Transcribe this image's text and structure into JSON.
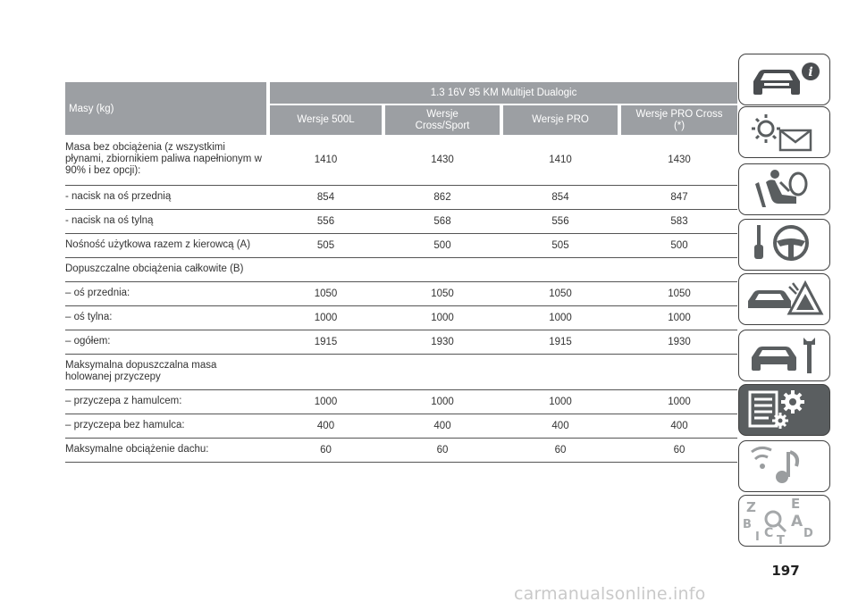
{
  "table": {
    "header_label": "Masy (kg)",
    "engine": "1.3 16V 95 KM Multijet Dualogic",
    "versions": [
      "Wersje 500L",
      "Wersje\nCross/Sport",
      "Wersje PRO",
      "Wersje PRO Cross\n(*)"
    ],
    "rows": [
      {
        "label": "Masa bez obciążenia (z wszystkimi\npłynami, zbiornikiem paliwa napełnionym w\n90% i bez opcji):",
        "values": [
          "1410",
          "1430",
          "1410",
          "1430"
        ]
      },
      {
        "label": "- nacisk na oś przednią",
        "values": [
          "854",
          "862",
          "854",
          "847"
        ]
      },
      {
        "label": "- nacisk na oś tylną",
        "values": [
          "556",
          "568",
          "556",
          "583"
        ]
      },
      {
        "label": "Nośność użytkowa razem z kierowcą (A)",
        "values": [
          "505",
          "500",
          "505",
          "500"
        ]
      },
      {
        "label": "Dopuszczalne obciążenia całkowite (B)",
        "values": [
          "",
          "",
          "",
          ""
        ]
      },
      {
        "label": "– oś przednia:",
        "values": [
          "1050",
          "1050",
          "1050",
          "1050"
        ]
      },
      {
        "label": "– oś tylna:",
        "values": [
          "1000",
          "1000",
          "1000",
          "1000"
        ]
      },
      {
        "label": "– ogółem:",
        "values": [
          "1915",
          "1930",
          "1915",
          "1930"
        ]
      },
      {
        "label": "Maksymalna dopuszczalna masa\nholowanej przyczepy",
        "values": [
          "",
          "",
          "",
          ""
        ]
      },
      {
        "label": "– przyczepa z hamulcem:",
        "values": [
          "1000",
          "1000",
          "1000",
          "1000"
        ]
      },
      {
        "label": "– przyczepa bez hamulca:",
        "values": [
          "400",
          "400",
          "400",
          "400"
        ]
      },
      {
        "label": "Maksymalne obciążenie dachu:",
        "values": [
          "60",
          "60",
          "60",
          "60"
        ]
      }
    ]
  },
  "side_tabs": [
    {
      "icon": "car-info-icon",
      "active": false
    },
    {
      "icon": "warning-lights-message-icon",
      "active": false
    },
    {
      "icon": "seat-airbag-icon",
      "active": false
    },
    {
      "icon": "key-steering-wheel-icon",
      "active": false
    },
    {
      "icon": "emergency-breakdown-icon",
      "active": false
    },
    {
      "icon": "car-maintenance-tools-icon",
      "active": false
    },
    {
      "icon": "technical-data-gears-icon",
      "active": true
    },
    {
      "icon": "multimedia-music-icon",
      "active": false
    },
    {
      "icon": "alphabetical-index-icon",
      "active": false
    }
  ],
  "index_letters": [
    "Z",
    "E",
    "B",
    "A",
    "I",
    "C",
    "T",
    "D"
  ],
  "page_number": "197",
  "footer": "carmanualsonline.info",
  "colors": {
    "header_bg": "#9c9fa3",
    "active_tab_bg": "#5a5e60",
    "rule": "#555555"
  }
}
